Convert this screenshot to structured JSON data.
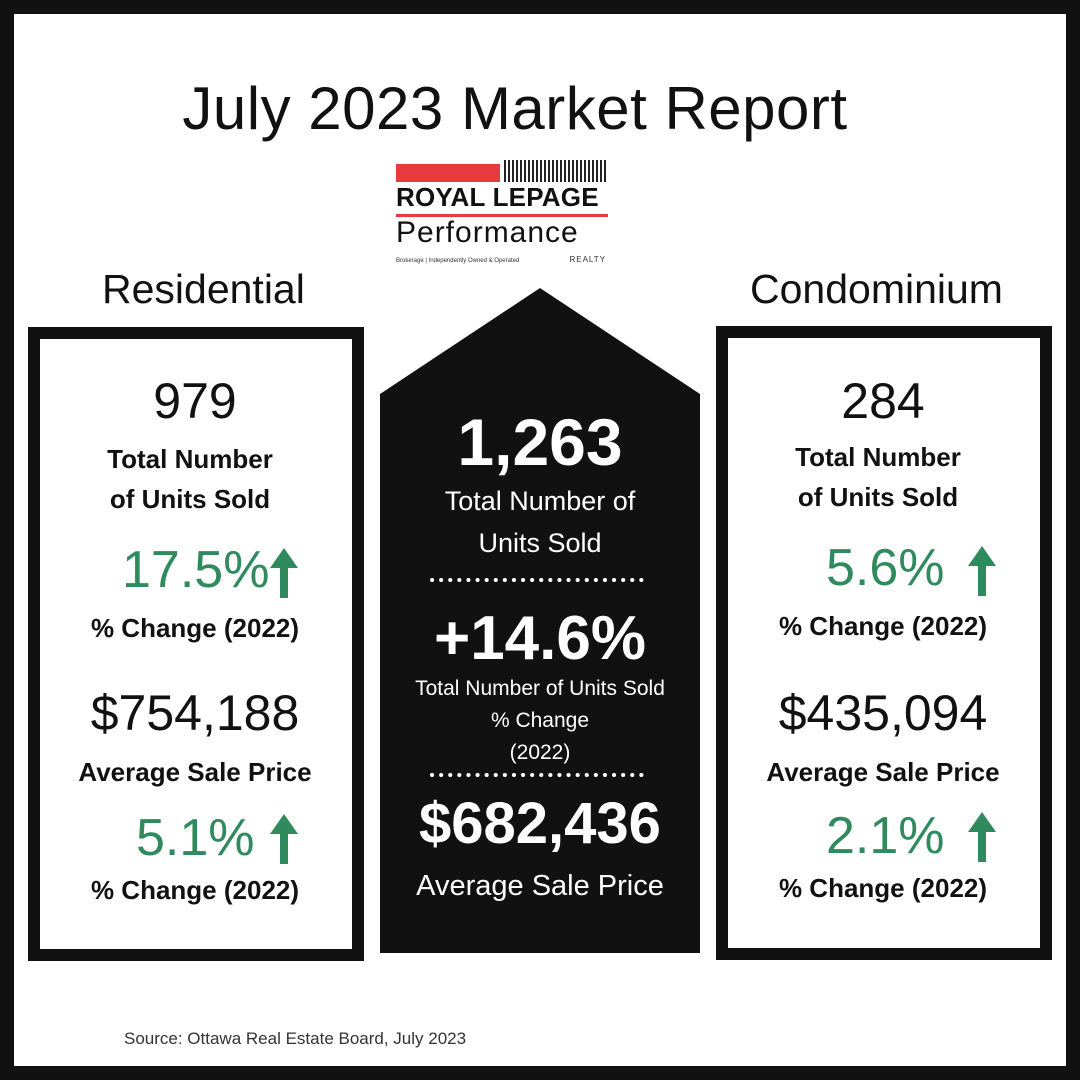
{
  "title": "July 2023 Market Report",
  "logo": {
    "line1": "ROYAL LEPAGE",
    "line2": "Performance",
    "tagline": "Brokerage | Independently Owned & Operated",
    "realty": "REALTY"
  },
  "residential": {
    "heading": "Residential",
    "units": "979",
    "units_label_1": "Total Number",
    "units_label_2": "of Units Sold",
    "units_change": "17.5%",
    "units_change_label": "% Change (2022)",
    "price": "$754,188",
    "price_label": "Average Sale Price",
    "price_change": "5.1%",
    "price_change_label": "% Change (2022)"
  },
  "condominium": {
    "heading": "Condominium",
    "units": "284",
    "units_label_1": "Total Number",
    "units_label_2": "of Units Sold",
    "units_change": "5.6%",
    "units_change_label": "% Change (2022)",
    "price": "$435,094",
    "price_label": "Average Sale Price",
    "price_change": "2.1%",
    "price_change_label": "% Change (2022)"
  },
  "total": {
    "units": "1,263",
    "units_label_1": "Total Number of",
    "units_label_2": "Units Sold",
    "change": "+14.6%",
    "change_label_1": "Total Number of Units Sold",
    "change_label_2": "% Change",
    "change_label_3": "(2022)",
    "price": "$682,436",
    "price_label": "Average Sale Price"
  },
  "source": "Source: Ottawa Real Estate Board, July 2023",
  "colors": {
    "accent_green": "#2f8a5e",
    "logo_red": "#e63c3f",
    "dark": "#111111"
  },
  "icons": [
    "up-arrow-icon"
  ]
}
